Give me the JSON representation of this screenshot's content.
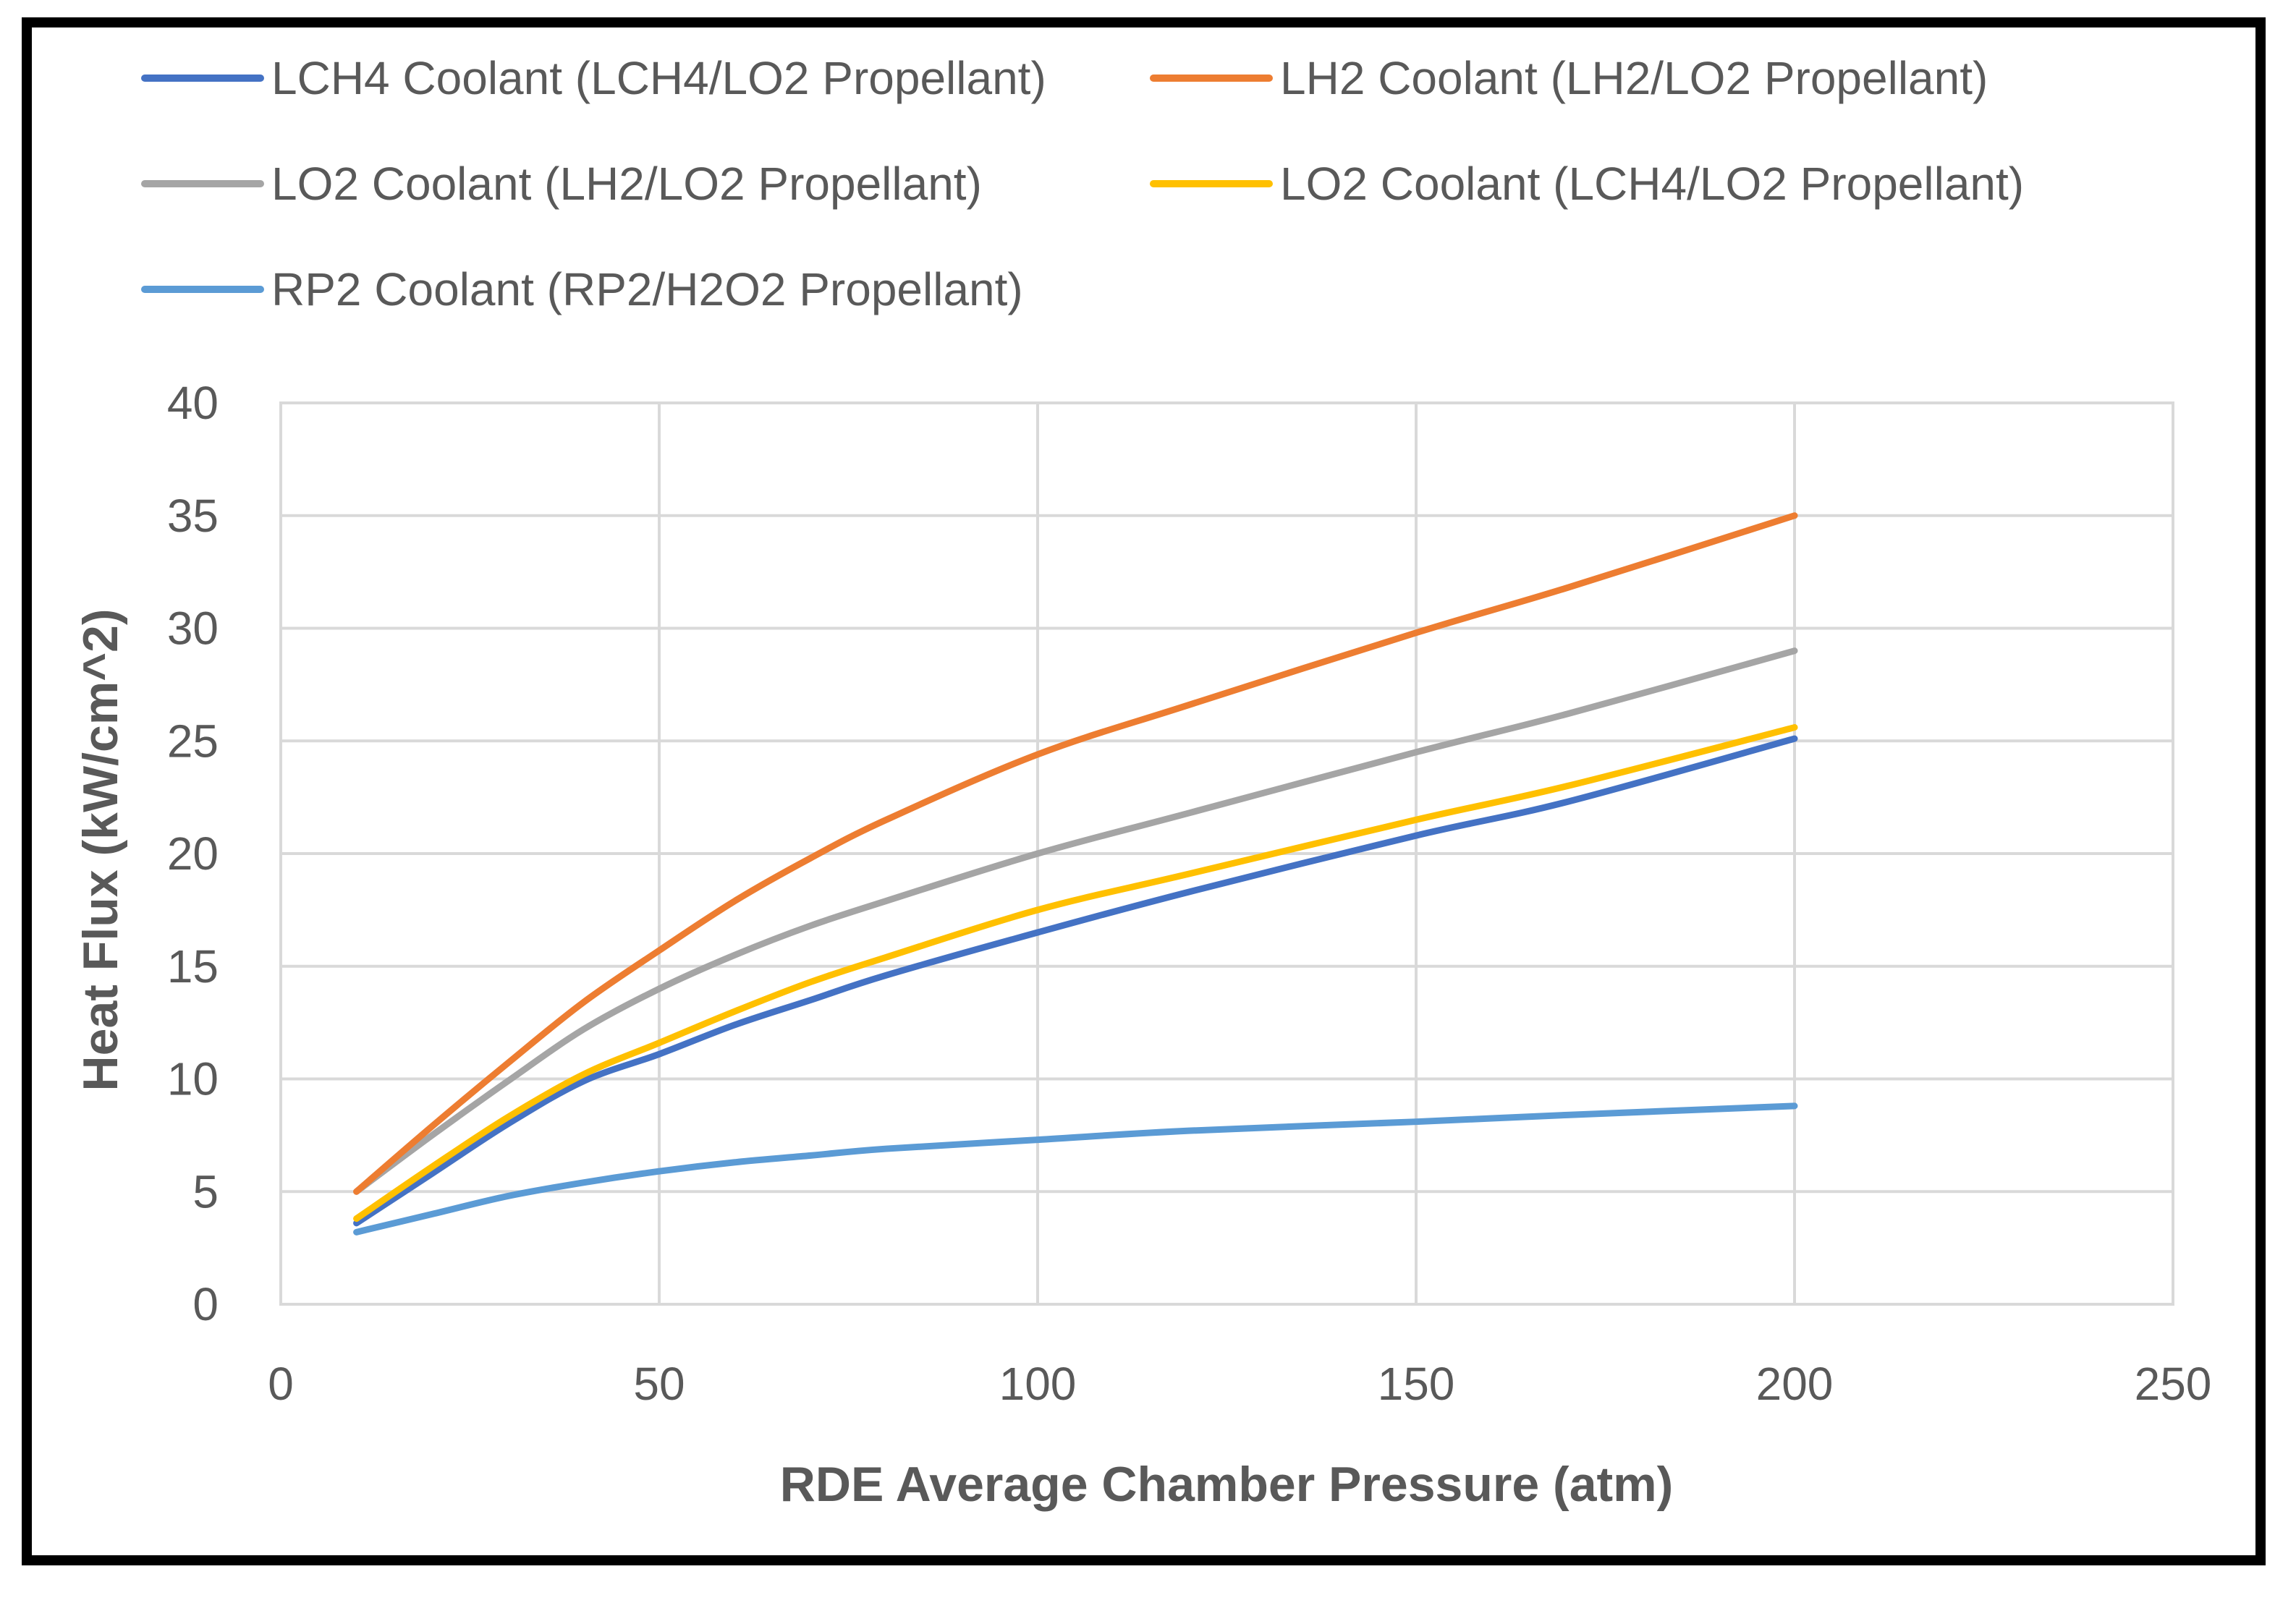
{
  "chart_data": {
    "type": "line",
    "title": "",
    "xlabel": "RDE Average Chamber Pressure (atm)",
    "ylabel": "Heat Flux (kW/cm^2)",
    "xlim": [
      0,
      250
    ],
    "ylim": [
      0,
      40
    ],
    "xticks": [
      0,
      50,
      100,
      150,
      200,
      250
    ],
    "yticks": [
      0,
      5,
      10,
      15,
      20,
      25,
      30,
      35,
      40
    ],
    "grid": true,
    "legend_position": "top",
    "series": [
      {
        "name": "LCH4 Coolant (LCH4/LO2 Propellant)",
        "color": "#4472C4",
        "x": [
          10,
          20,
          30,
          40,
          50,
          60,
          70,
          80,
          100,
          120,
          150,
          170,
          200
        ],
        "y": [
          3.6,
          5.8,
          8.0,
          9.9,
          11.1,
          12.4,
          13.5,
          14.6,
          16.5,
          18.3,
          20.8,
          22.3,
          25.1
        ]
      },
      {
        "name": "LH2 Coolant (LH2/LO2 Propellant)",
        "color": "#ED7D31",
        "x": [
          10,
          20,
          30,
          40,
          50,
          60,
          70,
          80,
          100,
          120,
          150,
          170,
          200
        ],
        "y": [
          5.0,
          7.9,
          10.7,
          13.4,
          15.7,
          17.9,
          19.8,
          21.5,
          24.4,
          26.6,
          29.8,
          31.8,
          35.0
        ]
      },
      {
        "name": "LO2 Coolant (LH2/LO2 Propellant)",
        "color": "#A5A5A5",
        "x": [
          10,
          20,
          30,
          40,
          50,
          60,
          70,
          80,
          100,
          120,
          150,
          170,
          200
        ],
        "y": [
          5.0,
          7.5,
          9.9,
          12.2,
          14.0,
          15.5,
          16.8,
          17.9,
          20.0,
          21.8,
          24.5,
          26.2,
          29.0
        ]
      },
      {
        "name": "LO2 Coolant (LCH4/LO2 Propellant)",
        "color": "#FFC000",
        "x": [
          10,
          20,
          30,
          40,
          50,
          60,
          70,
          80,
          100,
          120,
          150,
          170,
          200
        ],
        "y": [
          3.8,
          6.1,
          8.3,
          10.2,
          11.6,
          13.0,
          14.3,
          15.4,
          17.5,
          19.1,
          21.5,
          23.0,
          25.6
        ]
      },
      {
        "name": "RP2 Coolant (RP2/H2O2 Propellant)",
        "color": "#5B9BD5",
        "x": [
          10,
          20,
          30,
          40,
          50,
          60,
          70,
          80,
          100,
          120,
          150,
          170,
          200
        ],
        "y": [
          3.2,
          4.0,
          4.8,
          5.4,
          5.9,
          6.3,
          6.6,
          6.9,
          7.3,
          7.7,
          8.1,
          8.4,
          8.8
        ]
      }
    ]
  }
}
